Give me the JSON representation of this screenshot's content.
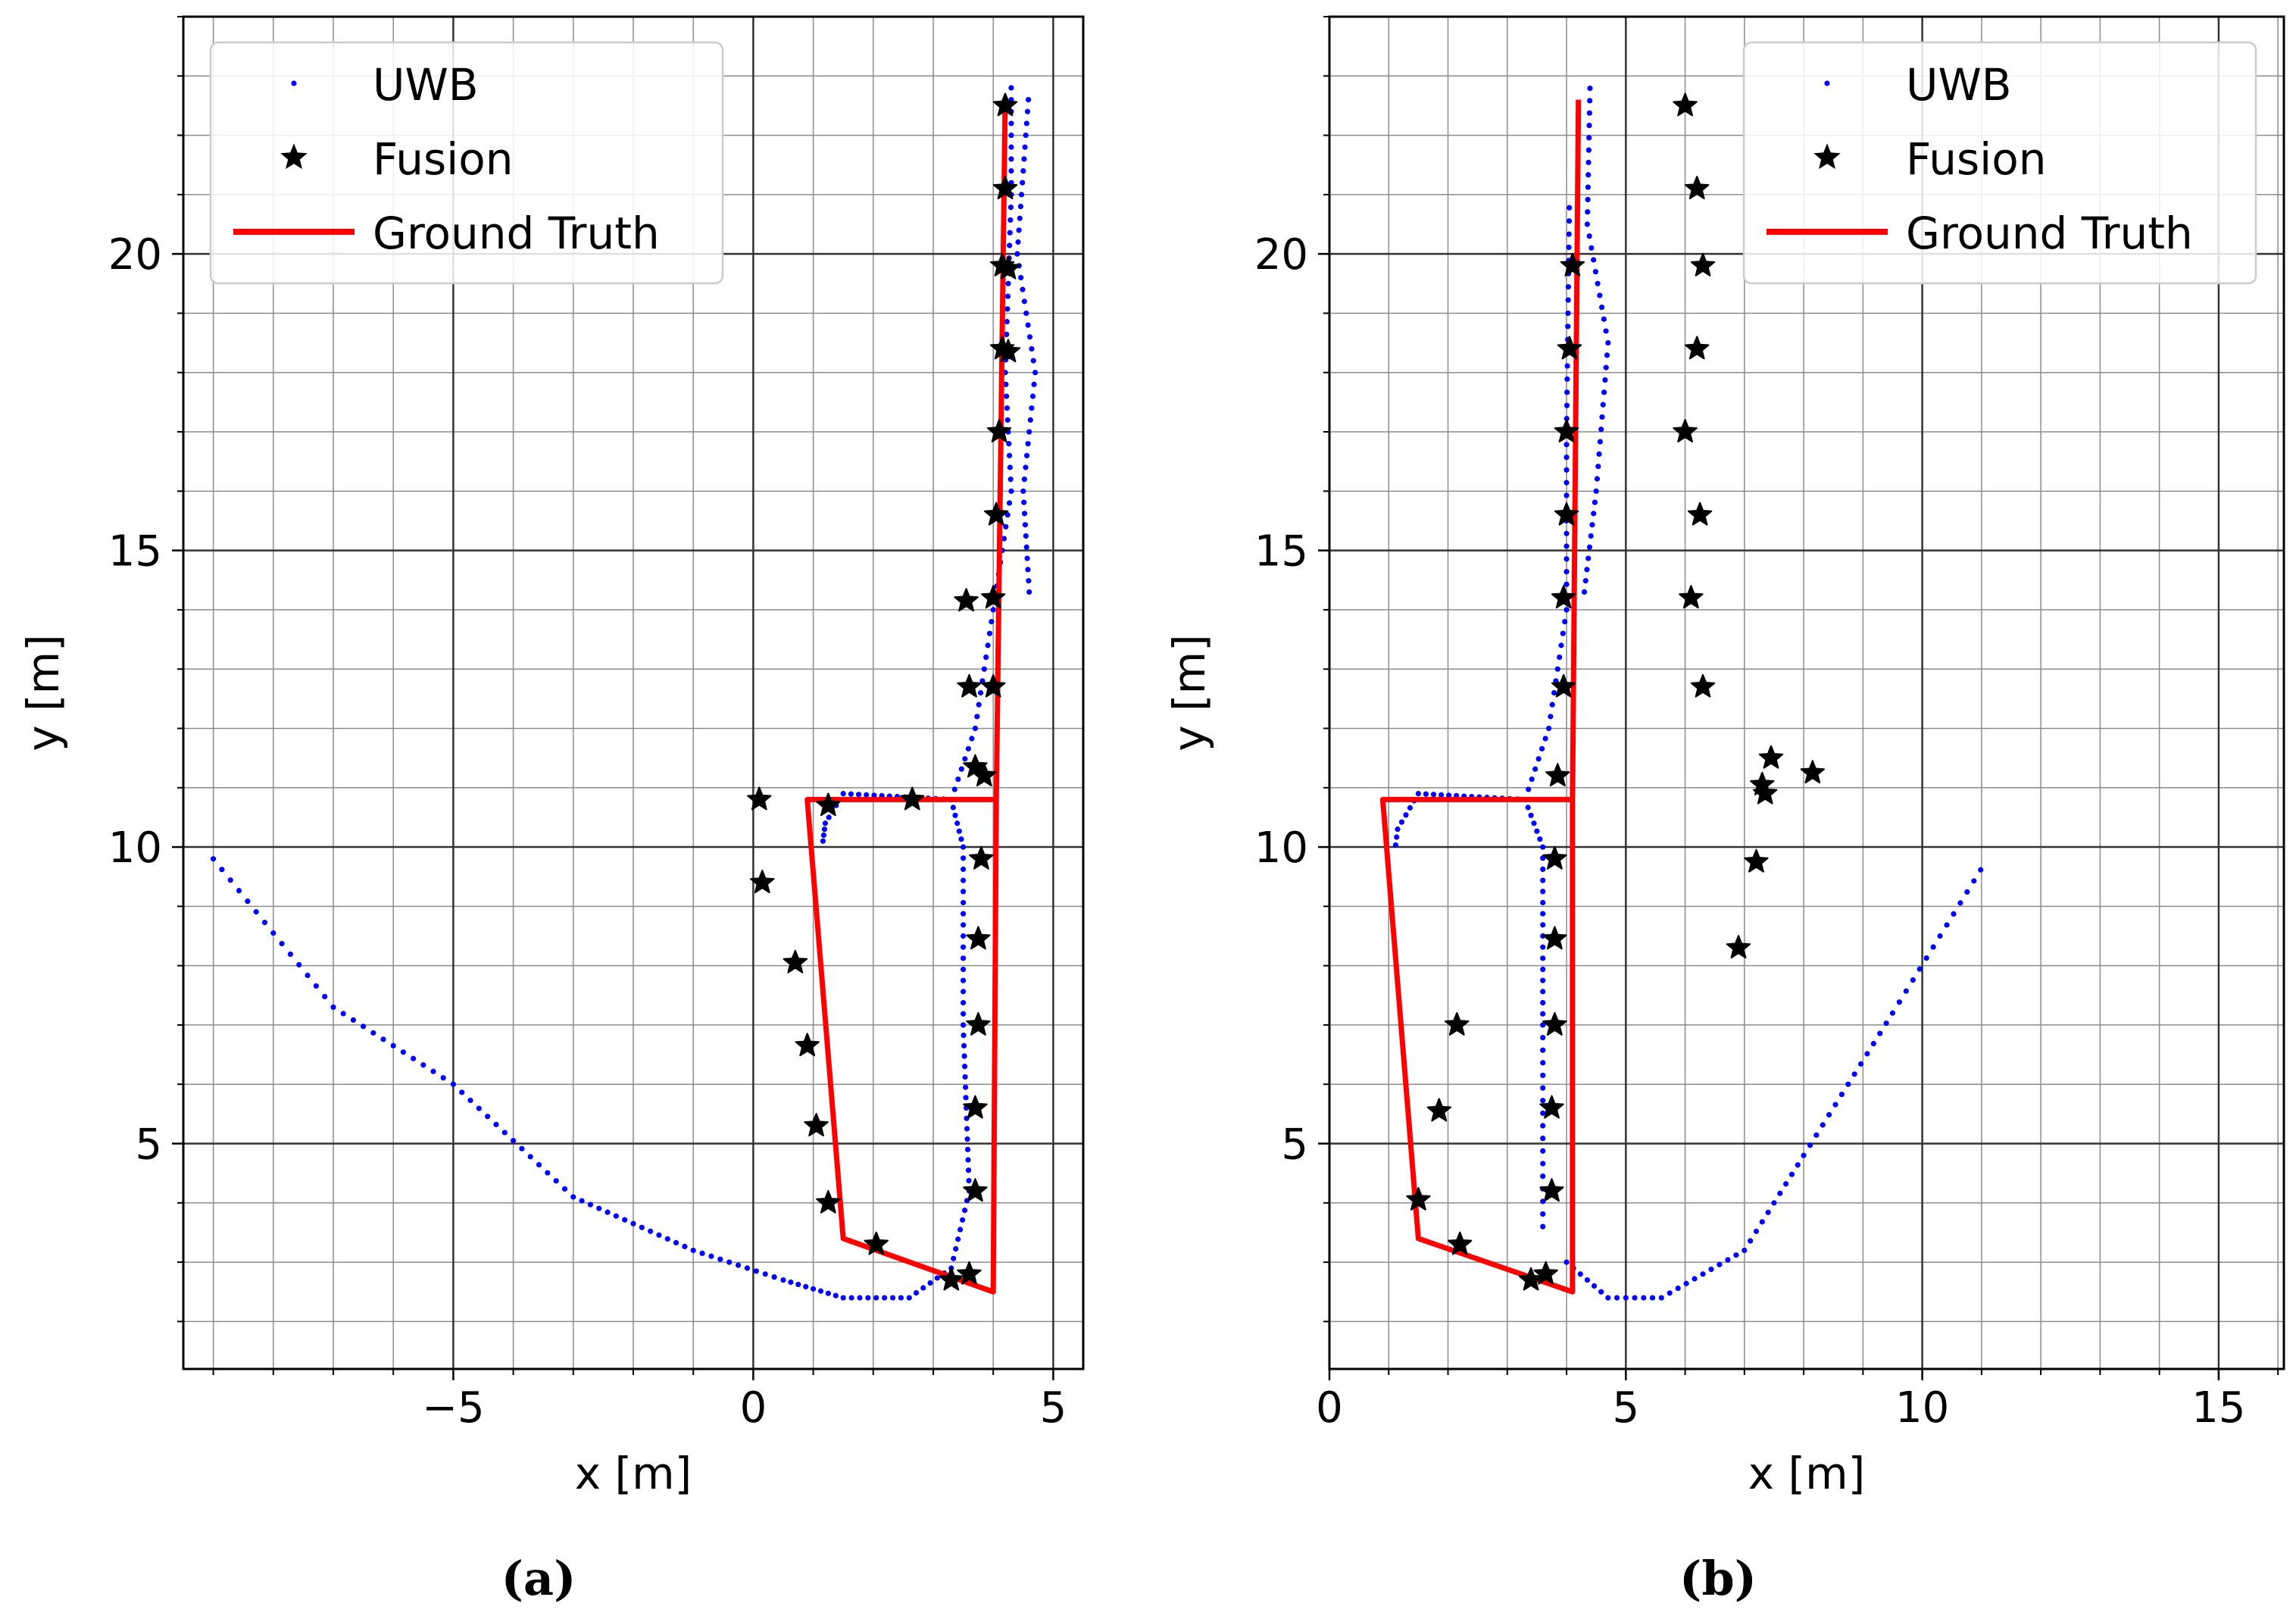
{
  "figure": {
    "captions": [
      "(a)",
      "(b)"
    ]
  },
  "colors": {
    "uwb": "#0000ff",
    "fusion": "#000000",
    "ground_truth": "#ff0000",
    "grid_major": "#333333",
    "grid_minor": "#8c8c8c"
  },
  "chart_data": [
    {
      "type": "scatter",
      "caption": "(a)",
      "xlabel": "x [m]",
      "ylabel": "y [m]",
      "xlim": [
        -9.5,
        5.5
      ],
      "ylim": [
        1.2,
        24.0
      ],
      "xticks": [
        -5,
        0,
        5
      ],
      "xtick_labels": [
        "−5",
        "0",
        "5"
      ],
      "yticks": [
        5,
        10,
        15,
        20
      ],
      "ytick_labels": [
        "5",
        "10",
        "15",
        "20"
      ],
      "minor_step": 1,
      "grid": true,
      "legend": {
        "position": "top-left",
        "entries": [
          "UWB",
          "Fusion",
          "Ground Truth"
        ]
      },
      "series": [
        {
          "name": "UWB",
          "style": "dots",
          "segments": [
            {
              "from": [
                -9.0,
                9.8
              ],
              "to": [
                -7.0,
                7.3
              ],
              "n": 14
            },
            {
              "from": [
                -7.0,
                7.3
              ],
              "to": [
                -5.0,
                6.0
              ],
              "n": 12
            },
            {
              "from": [
                -5.0,
                6.0
              ],
              "to": [
                -3.0,
                4.1
              ],
              "n": 14
            },
            {
              "from": [
                -3.0,
                4.1
              ],
              "to": [
                -1.0,
                3.2
              ],
              "n": 14
            },
            {
              "from": [
                -1.0,
                3.2
              ],
              "to": [
                0.5,
                2.7
              ],
              "n": 10
            },
            {
              "from": [
                0.5,
                2.7
              ],
              "to": [
                1.5,
                2.4
              ],
              "n": 8
            },
            {
              "from": [
                1.5,
                2.4
              ],
              "to": [
                2.6,
                2.4
              ],
              "n": 8
            },
            {
              "from": [
                2.6,
                2.4
              ],
              "to": [
                3.3,
                2.9
              ],
              "n": 6
            },
            {
              "from": [
                3.3,
                2.9
              ],
              "to": [
                3.6,
                4.2
              ],
              "n": 8
            },
            {
              "from": [
                3.6,
                4.2
              ],
              "to": [
                3.5,
                7.0
              ],
              "n": 16
            },
            {
              "from": [
                3.5,
                7.0
              ],
              "to": [
                3.5,
                10.0
              ],
              "n": 16
            },
            {
              "from": [
                3.5,
                10.0
              ],
              "to": [
                3.3,
                10.8
              ],
              "n": 6
            },
            {
              "from": [
                3.3,
                10.8
              ],
              "to": [
                1.5,
                10.9
              ],
              "n": 14
            },
            {
              "from": [
                1.5,
                10.9
              ],
              "to": [
                1.2,
                10.4
              ],
              "n": 5
            },
            {
              "from": [
                1.2,
                10.4
              ],
              "to": [
                1.15,
                10.0
              ],
              "n": 4
            },
            {
              "from": [
                3.3,
                10.8
              ],
              "to": [
                3.7,
                12.0
              ],
              "n": 7
            },
            {
              "from": [
                3.7,
                12.0
              ],
              "to": [
                4.0,
                14.0
              ],
              "n": 10
            },
            {
              "from": [
                4.0,
                14.0
              ],
              "to": [
                4.3,
                16.0
              ],
              "n": 10
            },
            {
              "from": [
                4.3,
                16.0
              ],
              "to": [
                4.2,
                18.0
              ],
              "n": 10
            },
            {
              "from": [
                4.2,
                18.0
              ],
              "to": [
                4.3,
                21.0
              ],
              "n": 14
            },
            {
              "from": [
                4.3,
                21.0
              ],
              "to": [
                4.3,
                23.0
              ],
              "n": 10
            },
            {
              "from": [
                4.6,
                14.3
              ],
              "to": [
                4.5,
                16.0
              ],
              "n": 9
            },
            {
              "from": [
                4.5,
                16.0
              ],
              "to": [
                4.7,
                18.0
              ],
              "n": 10
            },
            {
              "from": [
                4.7,
                18.0
              ],
              "to": [
                4.4,
                20.0
              ],
              "n": 10
            },
            {
              "from": [
                4.4,
                20.0
              ],
              "to": [
                4.6,
                22.8
              ],
              "n": 14
            }
          ]
        },
        {
          "name": "Fusion",
          "style": "stars",
          "points": [
            [
              4.2,
              22.5
            ],
            [
              4.2,
              21.1
            ],
            [
              4.15,
              19.8
            ],
            [
              4.25,
              19.75
            ],
            [
              4.15,
              18.4
            ],
            [
              4.25,
              18.35
            ],
            [
              4.1,
              17.0
            ],
            [
              4.05,
              15.6
            ],
            [
              4.0,
              14.2
            ],
            [
              3.55,
              14.15
            ],
            [
              4.0,
              12.7
            ],
            [
              3.6,
              12.7
            ],
            [
              3.7,
              11.35
            ],
            [
              3.85,
              11.2
            ],
            [
              2.65,
              10.8
            ],
            [
              1.25,
              10.7
            ],
            [
              0.1,
              10.8
            ],
            [
              0.15,
              9.4
            ],
            [
              3.8,
              9.8
            ],
            [
              3.75,
              8.45
            ],
            [
              3.75,
              7.0
            ],
            [
              3.7,
              5.6
            ],
            [
              3.7,
              4.2
            ],
            [
              3.6,
              2.8
            ],
            [
              3.3,
              2.7
            ],
            [
              2.05,
              3.3
            ],
            [
              1.25,
              4.0
            ],
            [
              1.05,
              5.3
            ],
            [
              0.9,
              6.65
            ],
            [
              0.7,
              8.05
            ]
          ]
        },
        {
          "name": "Ground Truth",
          "style": "line",
          "points": [
            [
              4.2,
              22.6
            ],
            [
              4.05,
              10.8
            ],
            [
              0.9,
              10.8
            ],
            [
              1.5,
              3.4
            ],
            [
              4.0,
              2.5
            ],
            [
              4.05,
              10.8
            ]
          ]
        }
      ]
    },
    {
      "type": "scatter",
      "caption": "(b)",
      "xlabel": "x [m]",
      "ylabel": "y [m]",
      "xlim": [
        0,
        16.1
      ],
      "ylim": [
        1.2,
        24.0
      ],
      "xticks": [
        0,
        5,
        10,
        15
      ],
      "xtick_labels": [
        "0",
        "5",
        "10",
        "15"
      ],
      "yticks": [
        5,
        10,
        15,
        20
      ],
      "ytick_labels": [
        "5",
        "10",
        "15",
        "20"
      ],
      "minor_step": 1,
      "grid": true,
      "legend": {
        "position": "top-right",
        "entries": [
          "UWB",
          "Fusion",
          "Ground Truth"
        ]
      },
      "series": [
        {
          "name": "UWB",
          "style": "dots",
          "segments": [
            {
              "from": [
                4.0,
                3.0
              ],
              "to": [
                4.7,
                2.4
              ],
              "n": 6
            },
            {
              "from": [
                4.7,
                2.4
              ],
              "to": [
                5.6,
                2.4
              ],
              "n": 6
            },
            {
              "from": [
                5.6,
                2.4
              ],
              "to": [
                7.0,
                3.2
              ],
              "n": 10
            },
            {
              "from": [
                7.0,
                3.2
              ],
              "to": [
                8.0,
                4.8
              ],
              "n": 10
            },
            {
              "from": [
                8.0,
                4.8
              ],
              "to": [
                9.5,
                7.2
              ],
              "n": 14
            },
            {
              "from": [
                9.5,
                7.2
              ],
              "to": [
                11.1,
                9.8
              ],
              "n": 14
            },
            {
              "from": [
                3.6,
                3.6
              ],
              "to": [
                3.6,
                7.0
              ],
              "n": 16
            },
            {
              "from": [
                3.6,
                7.0
              ],
              "to": [
                3.6,
                10.0
              ],
              "n": 16
            },
            {
              "from": [
                3.6,
                10.0
              ],
              "to": [
                3.3,
                10.8
              ],
              "n": 6
            },
            {
              "from": [
                3.3,
                10.8
              ],
              "to": [
                1.5,
                10.9
              ],
              "n": 14
            },
            {
              "from": [
                1.5,
                10.9
              ],
              "to": [
                1.15,
                10.3
              ],
              "n": 5
            },
            {
              "from": [
                1.15,
                10.3
              ],
              "to": [
                1.1,
                9.9
              ],
              "n": 3
            },
            {
              "from": [
                3.3,
                10.8
              ],
              "to": [
                3.7,
                12.0
              ],
              "n": 7
            },
            {
              "from": [
                3.7,
                12.0
              ],
              "to": [
                4.0,
                14.0
              ],
              "n": 10
            },
            {
              "from": [
                4.0,
                14.0
              ],
              "to": [
                4.0,
                17.0
              ],
              "n": 14
            },
            {
              "from": [
                4.0,
                17.0
              ],
              "to": [
                4.05,
                21.0
              ],
              "n": 18
            },
            {
              "from": [
                4.3,
                14.3
              ],
              "to": [
                4.5,
                16.0
              ],
              "n": 9
            },
            {
              "from": [
                4.5,
                16.0
              ],
              "to": [
                4.7,
                18.5
              ],
              "n": 12
            },
            {
              "from": [
                4.7,
                18.5
              ],
              "to": [
                4.35,
                20.5
              ],
              "n": 10
            },
            {
              "from": [
                4.35,
                20.5
              ],
              "to": [
                4.4,
                23.0
              ],
              "n": 12
            }
          ]
        },
        {
          "name": "Fusion",
          "style": "stars",
          "points": [
            [
              6.0,
              22.5
            ],
            [
              6.2,
              21.1
            ],
            [
              6.3,
              19.8
            ],
            [
              6.2,
              18.4
            ],
            [
              6.0,
              17.0
            ],
            [
              6.25,
              15.6
            ],
            [
              6.1,
              14.2
            ],
            [
              6.3,
              12.7
            ],
            [
              7.45,
              11.5
            ],
            [
              8.15,
              11.25
            ],
            [
              7.3,
              11.05
            ],
            [
              7.35,
              10.9
            ],
            [
              7.2,
              9.75
            ],
            [
              6.9,
              8.3
            ],
            [
              4.1,
              19.8
            ],
            [
              4.05,
              18.4
            ],
            [
              4.0,
              17.0
            ],
            [
              4.0,
              15.6
            ],
            [
              3.95,
              14.2
            ],
            [
              3.95,
              12.7
            ],
            [
              3.85,
              11.2
            ],
            [
              3.8,
              9.8
            ],
            [
              3.8,
              8.45
            ],
            [
              3.8,
              7.0
            ],
            [
              3.75,
              5.6
            ],
            [
              3.75,
              4.2
            ],
            [
              3.65,
              2.8
            ],
            [
              3.4,
              2.7
            ],
            [
              2.2,
              3.3
            ],
            [
              1.5,
              4.05
            ],
            [
              1.85,
              5.55
            ],
            [
              2.15,
              7.0
            ]
          ]
        },
        {
          "name": "Ground Truth",
          "style": "line",
          "points": [
            [
              4.2,
              22.6
            ],
            [
              4.1,
              10.8
            ],
            [
              0.9,
              10.8
            ],
            [
              1.5,
              3.4
            ],
            [
              4.1,
              2.5
            ],
            [
              4.1,
              10.8
            ]
          ]
        }
      ]
    }
  ]
}
